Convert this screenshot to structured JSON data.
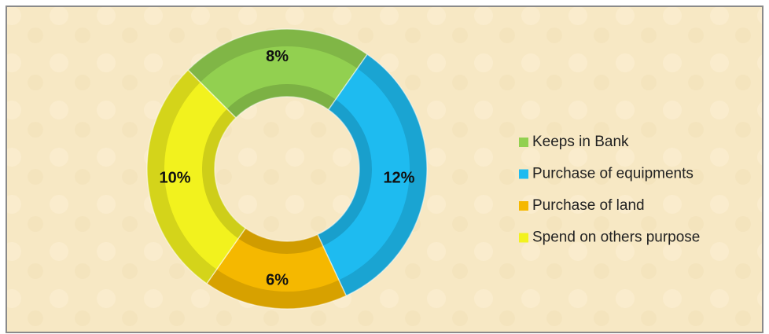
{
  "chart_data": {
    "type": "donut",
    "categories": [
      "Keeps in Bank",
      "Purchase of equipments",
      "Purchase of land",
      "Spend on others purpose"
    ],
    "values": [
      8,
      12,
      6,
      10
    ],
    "value_labels": [
      "8%",
      "12%",
      "6%",
      "10%"
    ],
    "colors": [
      "#92d050",
      "#1ebbf0",
      "#f5b800",
      "#f2f21e"
    ],
    "legend": "right"
  }
}
